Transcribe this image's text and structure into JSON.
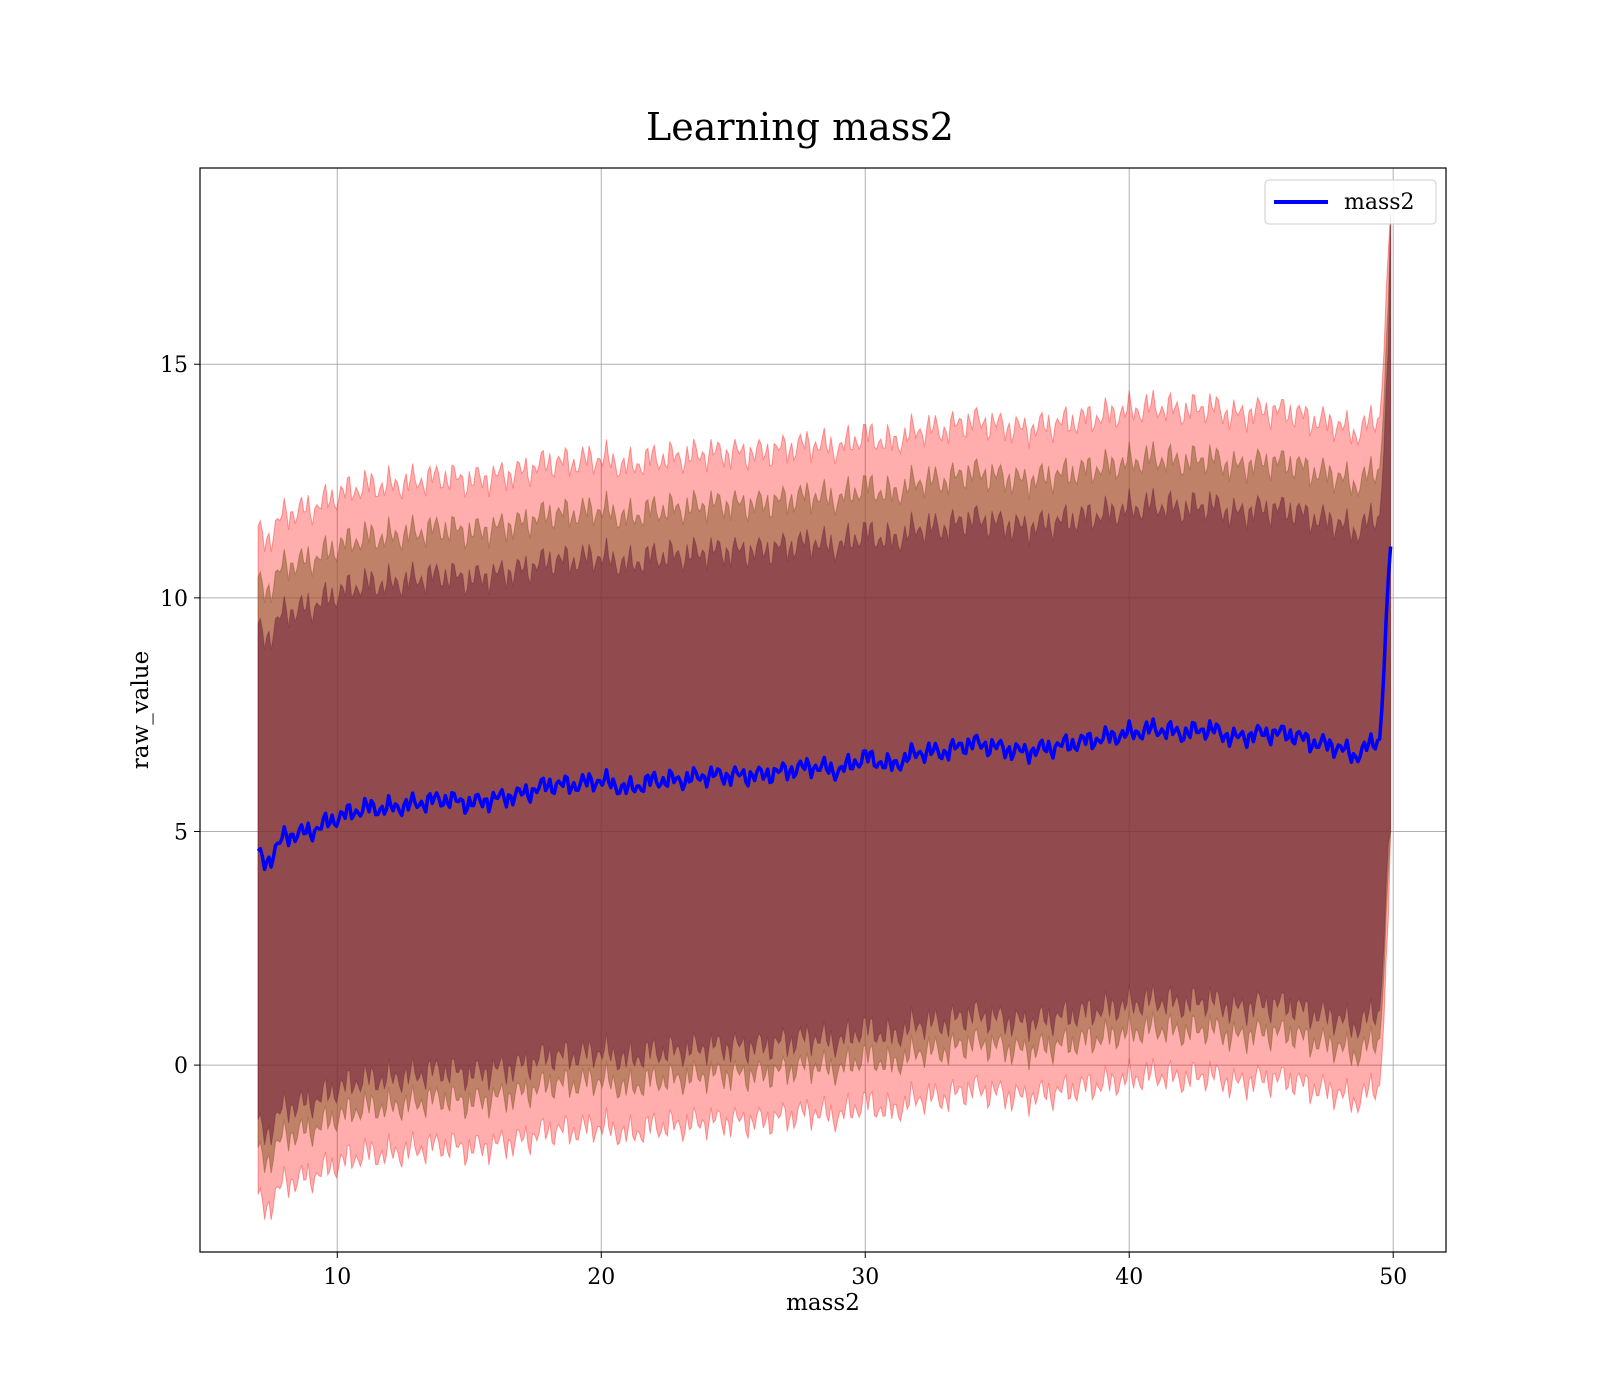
{
  "chart_data": {
    "type": "line",
    "title": "Learning mass2",
    "xlabel": "mass2",
    "ylabel": "raw_value",
    "xlim": [
      4.8,
      52.0
    ],
    "ylim": [
      -4.0,
      19.2
    ],
    "xticks": [
      10,
      20,
      30,
      40,
      50
    ],
    "yticks": [
      0,
      5,
      10,
      15
    ],
    "grid": true,
    "legend": {
      "placement": "top-right",
      "entries": [
        "mass2"
      ]
    },
    "colors": {
      "line": "#0000ff",
      "band": "#ff0000",
      "band_inner": "#6b1f3a",
      "band_mid": "#8a5c2e",
      "grid": "#b0b0b0"
    },
    "series": [
      {
        "name": "mass2",
        "x": [
          7.0,
          7.3,
          8,
          9,
          10,
          11,
          12,
          13,
          14,
          15,
          16,
          17,
          18,
          19,
          20,
          21,
          22,
          23,
          24,
          25,
          26,
          27,
          28,
          29,
          30,
          31,
          32,
          33,
          34,
          35,
          36,
          37,
          38,
          39,
          40,
          41,
          42,
          43,
          44,
          45,
          46,
          47,
          48,
          48.5,
          49,
          49.5,
          49.9
        ],
        "y": [
          4.5,
          4.3,
          4.9,
          5.0,
          5.3,
          5.5,
          5.5,
          5.6,
          5.7,
          5.6,
          5.7,
          5.8,
          6.0,
          6.0,
          6.1,
          5.9,
          6.1,
          6.1,
          6.2,
          6.2,
          6.2,
          6.3,
          6.4,
          6.3,
          6.6,
          6.4,
          6.7,
          6.7,
          6.9,
          6.8,
          6.7,
          6.8,
          6.9,
          7.0,
          7.1,
          7.2,
          7.1,
          7.2,
          7.0,
          7.1,
          7.1,
          6.9,
          6.8,
          6.6,
          6.8,
          7.0,
          11.1
        ]
      }
    ],
    "bands": {
      "sigma1": {
        "lower_offset": -5.8,
        "upper_offset": 4.8
      },
      "sigma2": {
        "lower_offset": -6.4,
        "upper_offset": 5.8
      },
      "sigma3": {
        "lower_offset": -7.4,
        "upper_offset": 6.9
      }
    }
  }
}
